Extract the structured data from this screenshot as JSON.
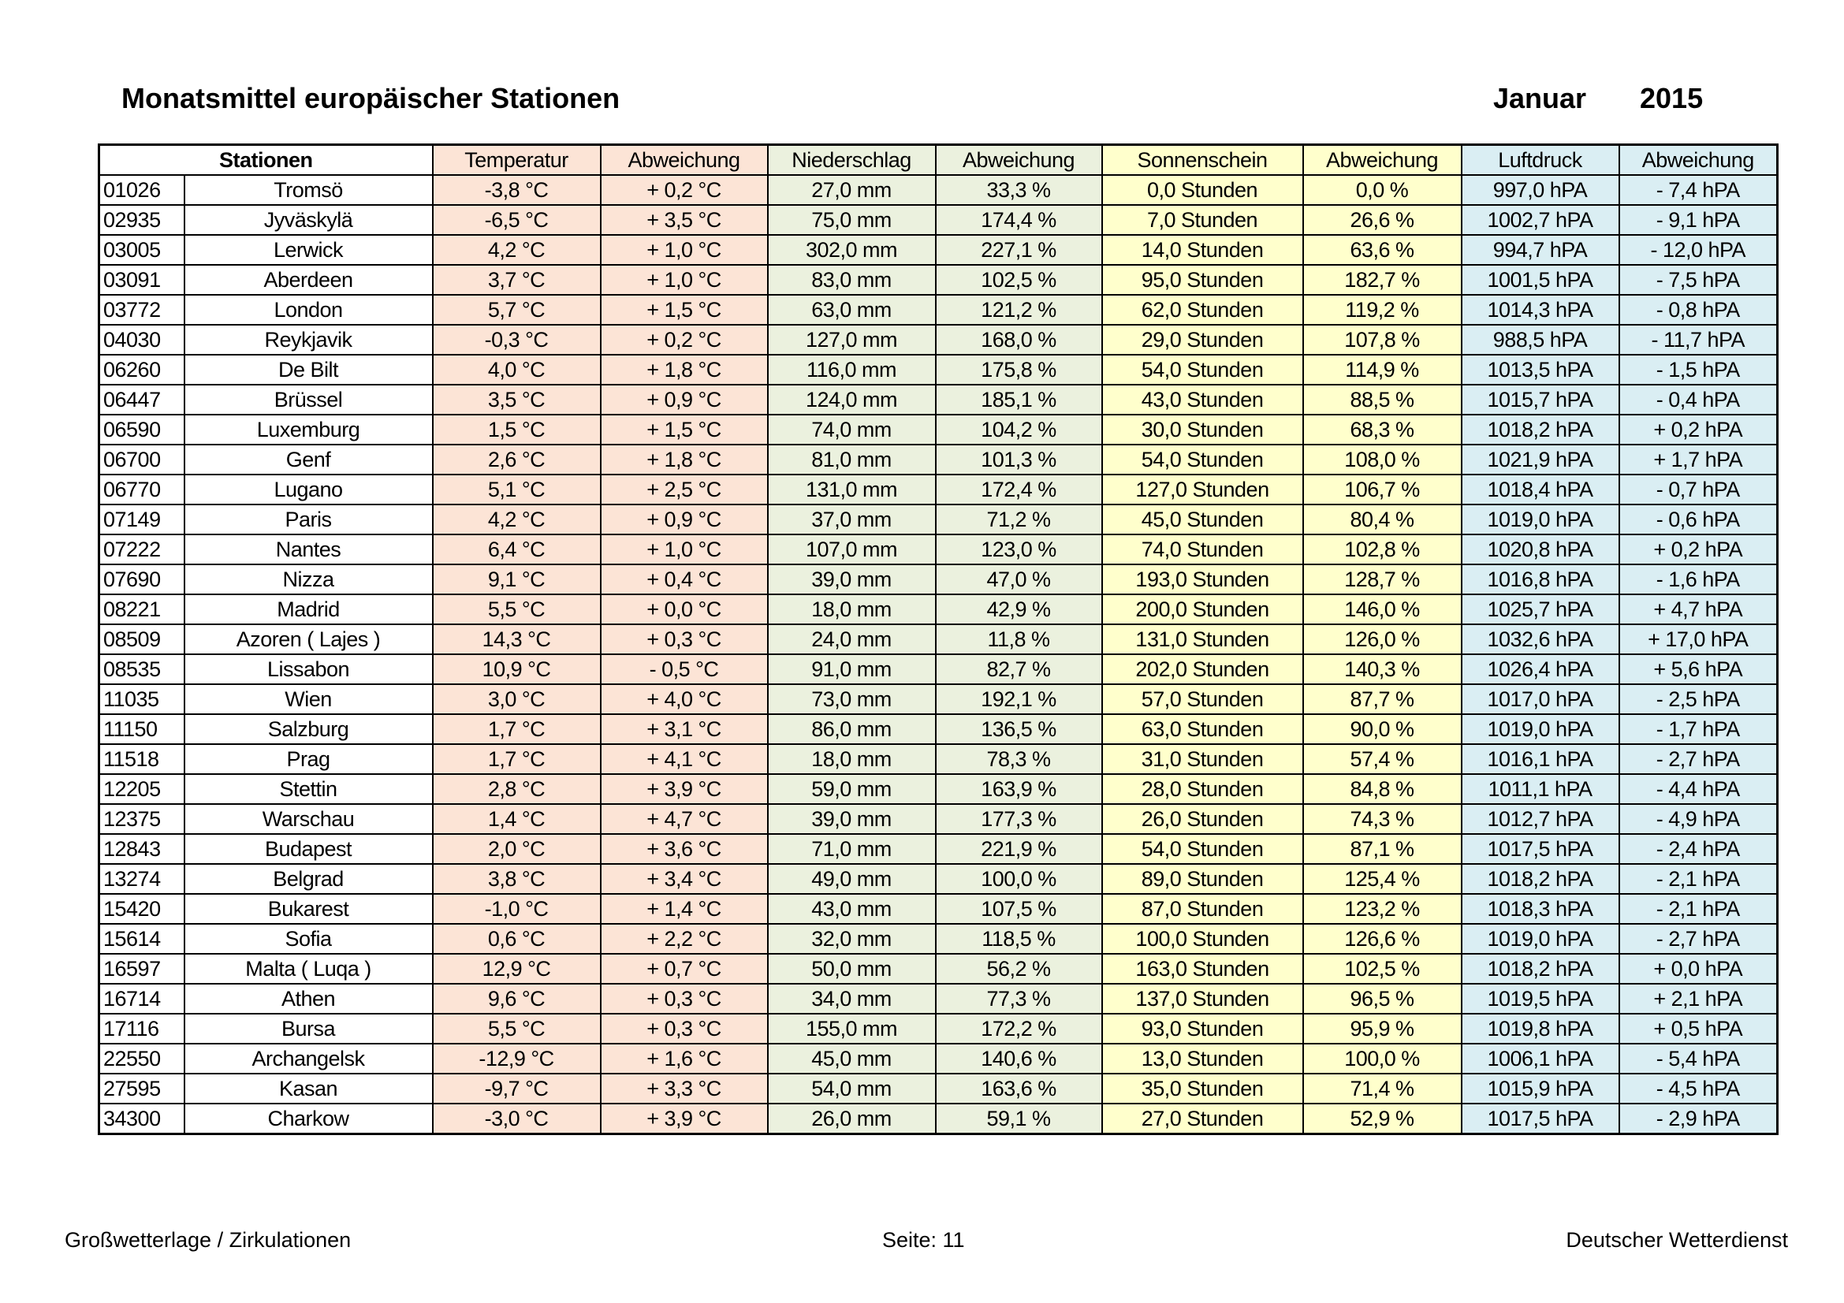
{
  "header": {
    "title": "Monatsmittel europäischer Stationen",
    "month": "Januar",
    "year": "2015"
  },
  "colors": {
    "temperature": "#fce4d6",
    "precipitation": "#ebf1de",
    "sunshine": "#ffffcc",
    "pressure": "#daeef3"
  },
  "table": {
    "columns": [
      "Stationen",
      "Temperatur",
      "Abweichung",
      "Niederschlag",
      "Abweichung",
      "Sonnenschein",
      "Abweichung",
      "Luftdruck",
      "Abweichung"
    ],
    "rows": [
      [
        "01026",
        "Tromsö",
        "-3,8 °C",
        "+ 0,2 °C",
        "27,0 mm",
        "33,3 %",
        "0,0 Stunden",
        "0,0 %",
        "997,0 hPA",
        "- 7,4 hPA"
      ],
      [
        "02935",
        "Jyväskylä",
        "-6,5 °C",
        "+ 3,5 °C",
        "75,0 mm",
        "174,4 %",
        "7,0 Stunden",
        "26,6 %",
        "1002,7 hPA",
        "- 9,1 hPA"
      ],
      [
        "03005",
        "Lerwick",
        "4,2 °C",
        "+ 1,0 °C",
        "302,0 mm",
        "227,1 %",
        "14,0 Stunden",
        "63,6 %",
        "994,7 hPA",
        "- 12,0 hPA"
      ],
      [
        "03091",
        "Aberdeen",
        "3,7 °C",
        "+ 1,0 °C",
        "83,0 mm",
        "102,5 %",
        "95,0 Stunden",
        "182,7 %",
        "1001,5 hPA",
        "- 7,5 hPA"
      ],
      [
        "03772",
        "London",
        "5,7 °C",
        "+ 1,5 °C",
        "63,0 mm",
        "121,2 %",
        "62,0 Stunden",
        "119,2 %",
        "1014,3 hPA",
        "- 0,8 hPA"
      ],
      [
        "04030",
        "Reykjavik",
        "-0,3 °C",
        "+ 0,2 °C",
        "127,0 mm",
        "168,0 %",
        "29,0 Stunden",
        "107,8 %",
        "988,5 hPA",
        "- 11,7 hPA"
      ],
      [
        "06260",
        "De Bilt",
        "4,0 °C",
        "+ 1,8 °C",
        "116,0 mm",
        "175,8 %",
        "54,0 Stunden",
        "114,9 %",
        "1013,5 hPA",
        "- 1,5 hPA"
      ],
      [
        "06447",
        "Brüssel",
        "3,5 °C",
        "+ 0,9 °C",
        "124,0 mm",
        "185,1 %",
        "43,0 Stunden",
        "88,5 %",
        "1015,7 hPA",
        "- 0,4 hPA"
      ],
      [
        "06590",
        "Luxemburg",
        "1,5 °C",
        "+ 1,5 °C",
        "74,0 mm",
        "104,2 %",
        "30,0 Stunden",
        "68,3 %",
        "1018,2 hPA",
        "+ 0,2 hPA"
      ],
      [
        "06700",
        "Genf",
        "2,6 °C",
        "+ 1,8 °C",
        "81,0 mm",
        "101,3 %",
        "54,0 Stunden",
        "108,0 %",
        "1021,9 hPA",
        "+ 1,7 hPA"
      ],
      [
        "06770",
        "Lugano",
        "5,1 °C",
        "+ 2,5 °C",
        "131,0 mm",
        "172,4 %",
        "127,0 Stunden",
        "106,7 %",
        "1018,4 hPA",
        "- 0,7 hPA"
      ],
      [
        "07149",
        "Paris",
        "4,2 °C",
        "+ 0,9 °C",
        "37,0 mm",
        "71,2 %",
        "45,0 Stunden",
        "80,4 %",
        "1019,0 hPA",
        "- 0,6 hPA"
      ],
      [
        "07222",
        "Nantes",
        "6,4 °C",
        "+ 1,0 °C",
        "107,0 mm",
        "123,0 %",
        "74,0 Stunden",
        "102,8 %",
        "1020,8 hPA",
        "+ 0,2 hPA"
      ],
      [
        "07690",
        "Nizza",
        "9,1 °C",
        "+ 0,4 °C",
        "39,0 mm",
        "47,0 %",
        "193,0 Stunden",
        "128,7 %",
        "1016,8 hPA",
        "- 1,6 hPA"
      ],
      [
        "08221",
        "Madrid",
        "5,5 °C",
        "+ 0,0 °C",
        "18,0 mm",
        "42,9 %",
        "200,0 Stunden",
        "146,0 %",
        "1025,7 hPA",
        "+ 4,7 hPA"
      ],
      [
        "08509",
        "Azoren ( Lajes )",
        "14,3 °C",
        "+ 0,3 °C",
        "24,0 mm",
        "11,8 %",
        "131,0 Stunden",
        "126,0 %",
        "1032,6 hPA",
        "+ 17,0 hPA"
      ],
      [
        "08535",
        "Lissabon",
        "10,9 °C",
        "- 0,5 °C",
        "91,0 mm",
        "82,7 %",
        "202,0 Stunden",
        "140,3 %",
        "1026,4 hPA",
        "+ 5,6 hPA"
      ],
      [
        "11035",
        "Wien",
        "3,0 °C",
        "+ 4,0 °C",
        "73,0 mm",
        "192,1 %",
        "57,0 Stunden",
        "87,7 %",
        "1017,0 hPA",
        "- 2,5 hPA"
      ],
      [
        "11150",
        "Salzburg",
        "1,7 °C",
        "+ 3,1 °C",
        "86,0 mm",
        "136,5 %",
        "63,0 Stunden",
        "90,0 %",
        "1019,0 hPA",
        "- 1,7 hPA"
      ],
      [
        "11518",
        "Prag",
        "1,7 °C",
        "+ 4,1 °C",
        "18,0 mm",
        "78,3 %",
        "31,0 Stunden",
        "57,4 %",
        "1016,1 hPA",
        "- 2,7 hPA"
      ],
      [
        "12205",
        "Stettin",
        "2,8 °C",
        "+ 3,9 °C",
        "59,0 mm",
        "163,9 %",
        "28,0 Stunden",
        "84,8 %",
        "1011,1 hPA",
        "- 4,4 hPA"
      ],
      [
        "12375",
        "Warschau",
        "1,4 °C",
        "+ 4,7 °C",
        "39,0 mm",
        "177,3 %",
        "26,0 Stunden",
        "74,3 %",
        "1012,7 hPA",
        "- 4,9 hPA"
      ],
      [
        "12843",
        "Budapest",
        "2,0 °C",
        "+ 3,6 °C",
        "71,0 mm",
        "221,9 %",
        "54,0 Stunden",
        "87,1 %",
        "1017,5 hPA",
        "- 2,4 hPA"
      ],
      [
        "13274",
        "Belgrad",
        "3,8 °C",
        "+ 3,4 °C",
        "49,0 mm",
        "100,0 %",
        "89,0 Stunden",
        "125,4 %",
        "1018,2 hPA",
        "- 2,1 hPA"
      ],
      [
        "15420",
        "Bukarest",
        "-1,0 °C",
        "+ 1,4 °C",
        "43,0 mm",
        "107,5 %",
        "87,0 Stunden",
        "123,2 %",
        "1018,3 hPA",
        "- 2,1 hPA"
      ],
      [
        "15614",
        "Sofia",
        "0,6 °C",
        "+ 2,2 °C",
        "32,0 mm",
        "118,5 %",
        "100,0 Stunden",
        "126,6 %",
        "1019,0 hPA",
        "- 2,7 hPA"
      ],
      [
        "16597",
        "Malta ( Luqa )",
        "12,9 °C",
        "+ 0,7 °C",
        "50,0 mm",
        "56,2 %",
        "163,0 Stunden",
        "102,5 %",
        "1018,2 hPA",
        "+ 0,0 hPA"
      ],
      [
        "16714",
        "Athen",
        "9,6 °C",
        "+ 0,3 °C",
        "34,0 mm",
        "77,3 %",
        "137,0 Stunden",
        "96,5 %",
        "1019,5 hPA",
        "+ 2,1 hPA"
      ],
      [
        "17116",
        "Bursa",
        "5,5 °C",
        "+ 0,3 °C",
        "155,0 mm",
        "172,2 %",
        "93,0 Stunden",
        "95,9 %",
        "1019,8 hPA",
        "+ 0,5 hPA"
      ],
      [
        "22550",
        "Archangelsk",
        "-12,9 °C",
        "+ 1,6 °C",
        "45,0 mm",
        "140,6 %",
        "13,0 Stunden",
        "100,0 %",
        "1006,1 hPA",
        "- 5,4 hPA"
      ],
      [
        "27595",
        "Kasan",
        "-9,7 °C",
        "+ 3,3 °C",
        "54,0 mm",
        "163,6 %",
        "35,0 Stunden",
        "71,4 %",
        "1015,9 hPA",
        "- 4,5 hPA"
      ],
      [
        "34300",
        "Charkow",
        "-3,0 °C",
        "+ 3,9 °C",
        "26,0 mm",
        "59,1 %",
        "27,0 Stunden",
        "52,9 %",
        "1017,5 hPA",
        "- 2,9 hPA"
      ]
    ]
  },
  "footer": {
    "left": "Großwetterlage / Zirkulationen",
    "center": "Seite: 11",
    "right": "Deutscher Wetterdienst"
  }
}
